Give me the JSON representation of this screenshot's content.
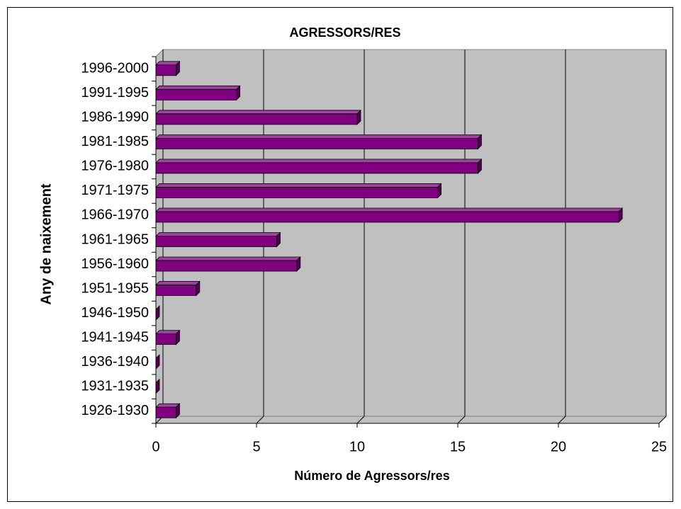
{
  "chart_data": {
    "type": "bar",
    "orientation": "horizontal",
    "title": "AGRESSORS/RES",
    "x_label": "Número de Agressors/res",
    "y_label": "Any de naixement",
    "categories": [
      "1996-2000",
      "1991-1995",
      "1986-1990",
      "1981-1985",
      "1976-1980",
      "1971-1975",
      "1966-1970",
      "1961-1965",
      "1956-1960",
      "1951-1955",
      "1946-1950",
      "1941-1945",
      "1936-1940",
      "1931-1935",
      "1926-1930"
    ],
    "values": [
      1,
      4,
      10,
      16,
      16,
      14,
      23,
      6,
      7,
      2,
      0,
      1,
      0,
      0,
      1
    ],
    "color": "#800080",
    "xlim": [
      0,
      25
    ],
    "xticks": [
      0,
      5,
      10,
      15,
      20,
      25
    ],
    "grid": true
  }
}
